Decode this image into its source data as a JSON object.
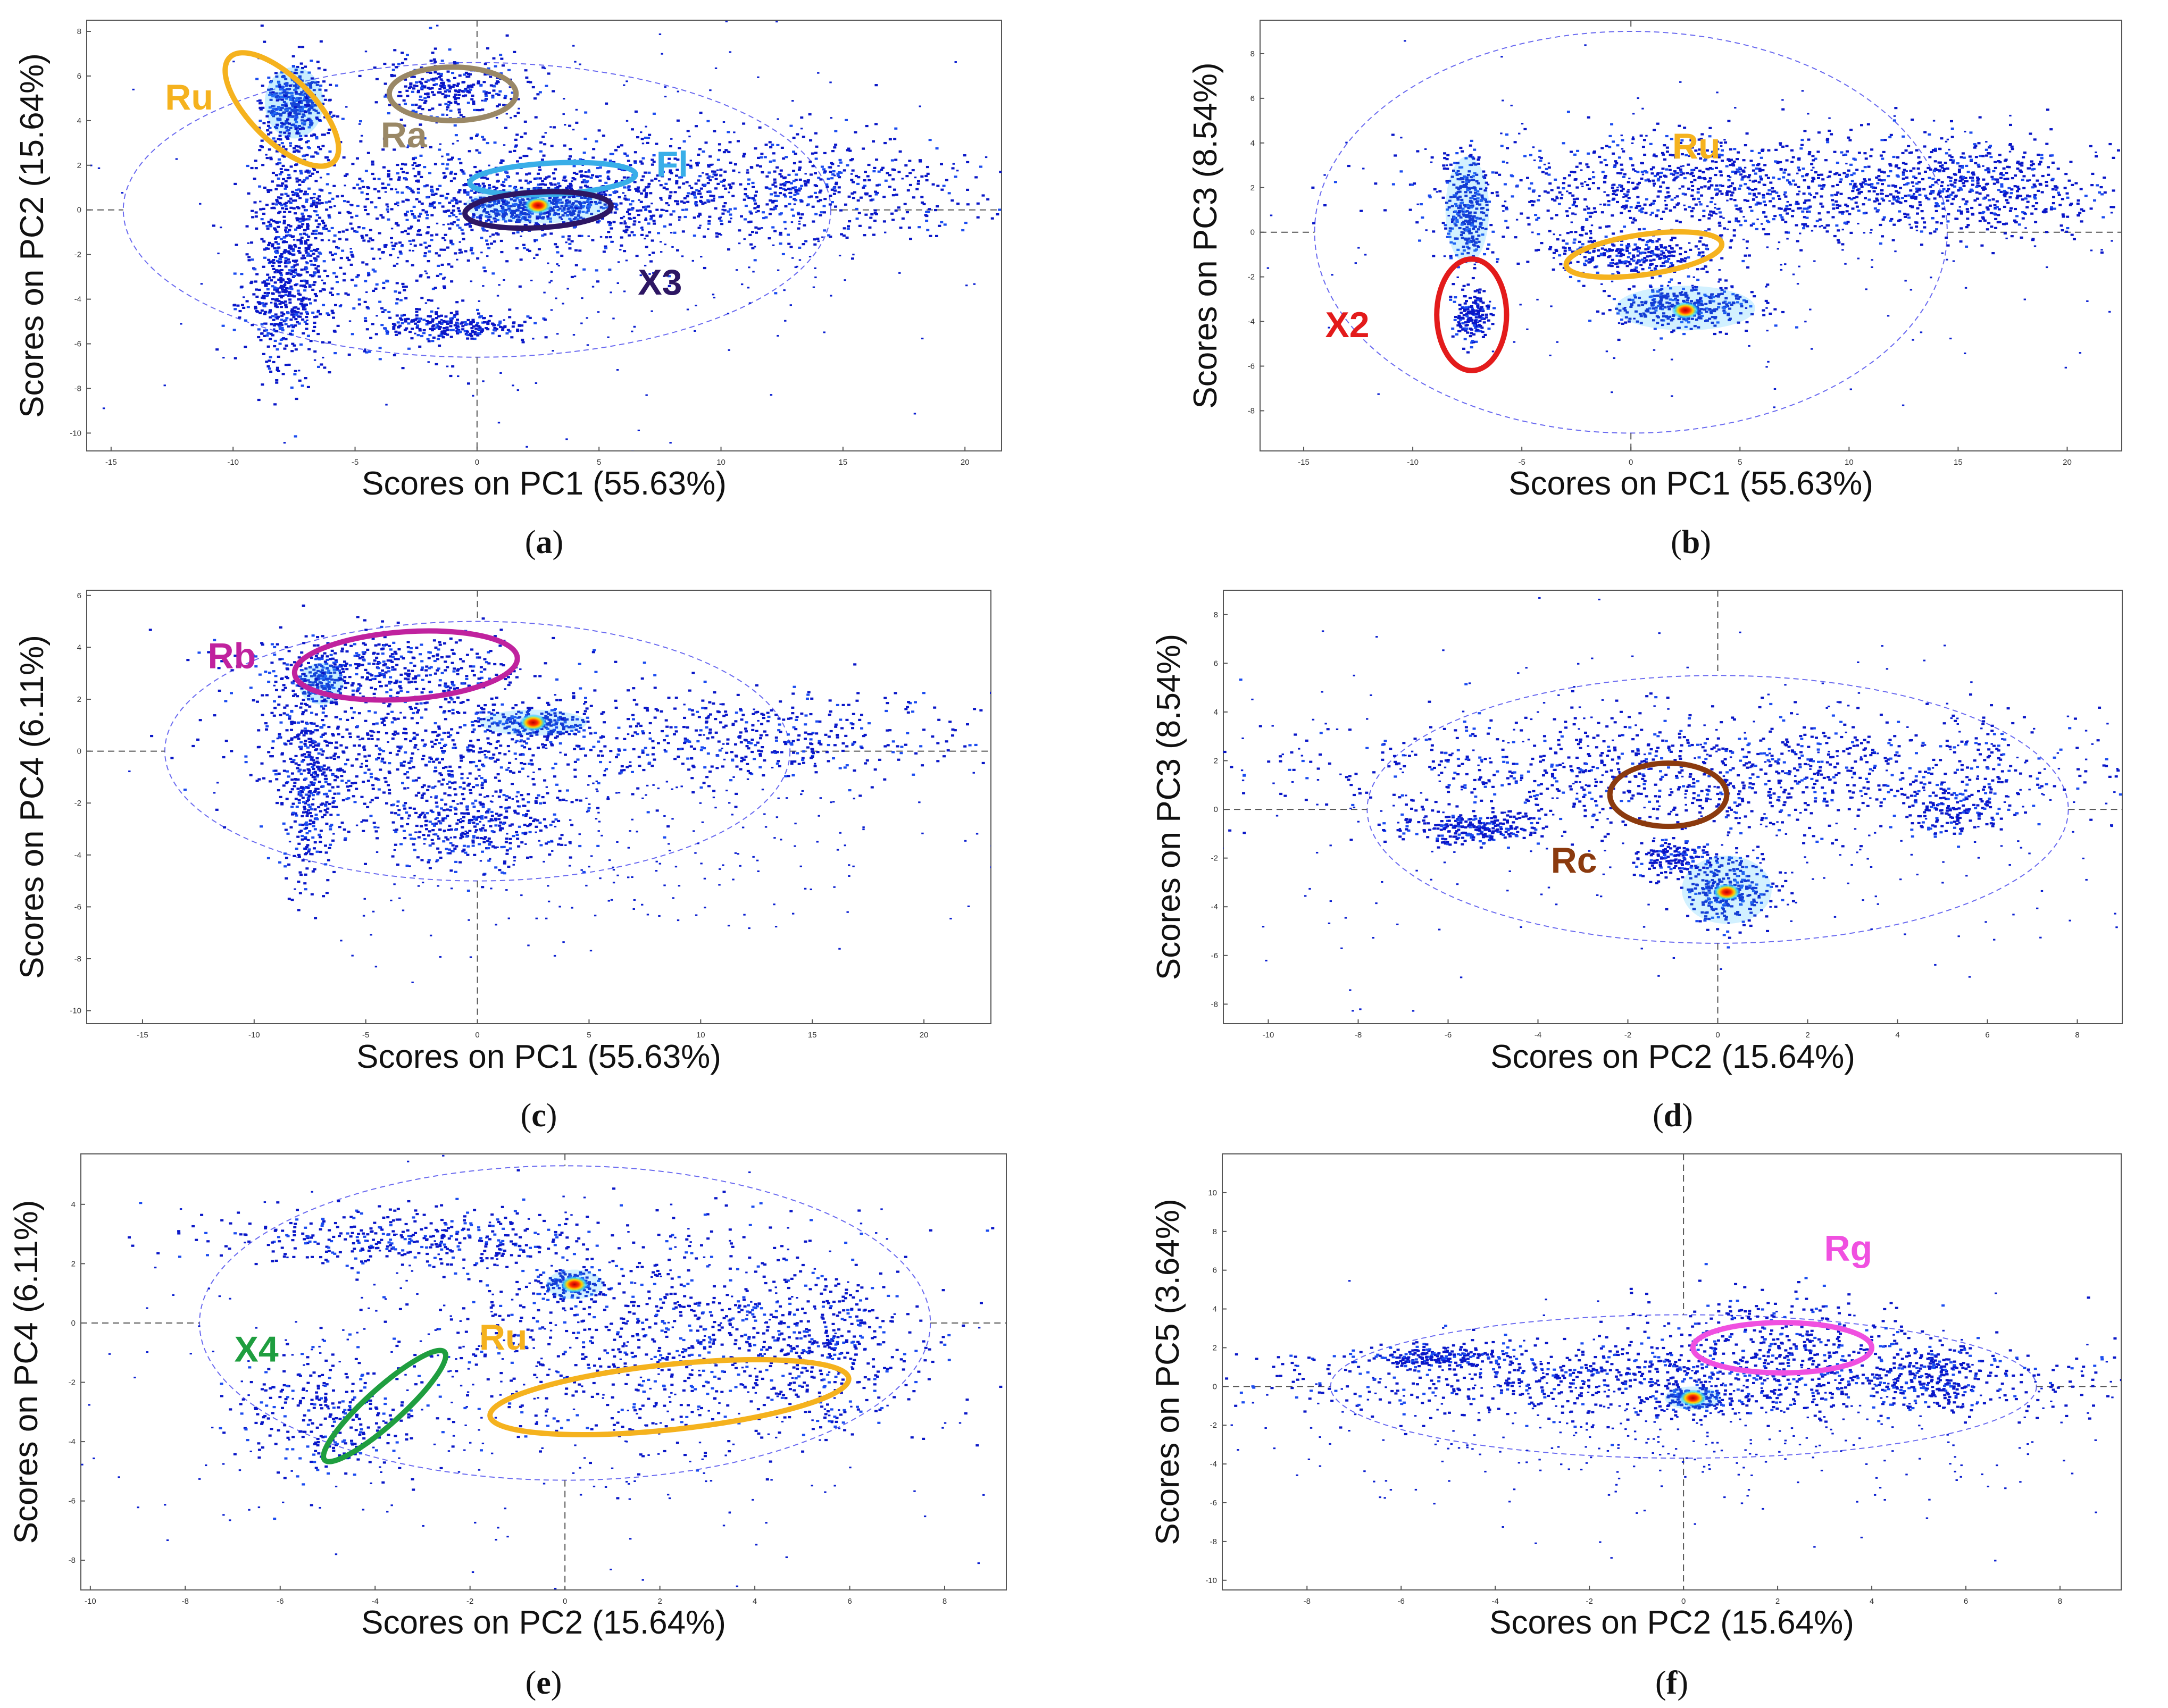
{
  "chart_data": [
    {
      "type": "scatter",
      "id": "a",
      "caption": "(a)",
      "xlabel": "Scores on PC1 (55.63%)",
      "ylabel": "Scores on PC2 (15.64%)",
      "xlim": [
        -16,
        21.5
      ],
      "ylim": [
        -10.8,
        8.5
      ],
      "xticks": [
        -15,
        -10,
        -5,
        0,
        5,
        10,
        15,
        20
      ],
      "yticks": [
        -10,
        -8,
        -6,
        -4,
        -2,
        0,
        2,
        4,
        6,
        8
      ],
      "confidence_ellipse": {
        "cx": 0,
        "cy": 0,
        "rx": 14.5,
        "ry": 6.6
      },
      "hotspot": {
        "x": 2.5,
        "y": 0.2
      },
      "density_clusters": [
        {
          "x": -7.5,
          "y": 4.8,
          "sx": 0.6,
          "sy": 0.8,
          "n": 350,
          "intensity": 0.6
        },
        {
          "x": -8,
          "y": -4,
          "sx": 0.8,
          "sy": 1.5,
          "n": 300
        },
        {
          "x": -7.5,
          "y": 0,
          "sx": 0.8,
          "sy": 3,
          "n": 500
        },
        {
          "x": -1,
          "y": 5.5,
          "sx": 1.6,
          "sy": 0.7,
          "n": 300
        },
        {
          "x": 2,
          "y": 0.5,
          "sx": 4,
          "sy": 1.4,
          "n": 700
        },
        {
          "x": 2.5,
          "y": 0.2,
          "sx": 1.5,
          "sy": 0.4,
          "n": 350,
          "intensity": 0.5
        },
        {
          "x": 12,
          "y": 1,
          "sx": 5,
          "sy": 1.2,
          "n": 700
        },
        {
          "x": -1,
          "y": -5.2,
          "sx": 1.6,
          "sy": 0.3,
          "n": 250
        },
        {
          "x": -4,
          "y": -2,
          "sx": 2.5,
          "sy": 2.5,
          "n": 350
        },
        {
          "x": 4,
          "y": -1,
          "sx": 8,
          "sy": 4,
          "n": 400,
          "sparse": true
        }
      ],
      "annotations": [
        {
          "label": "Ru",
          "color": "#f5b21e",
          "ex": -8,
          "ey": 4.5,
          "erx": 1.3,
          "ery": 3.3,
          "rot": -45,
          "tx": -11.8,
          "ty": 4.5
        },
        {
          "label": "Ra",
          "color": "#9a8866",
          "ex": -1,
          "ey": 5.2,
          "erx": 2.6,
          "ery": 1.2,
          "rot": 0,
          "tx": -3,
          "ty": 2.8
        },
        {
          "label": "Fl",
          "color": "#39aee8",
          "ex": 3.1,
          "ey": 1.4,
          "erx": 3.4,
          "ery": 0.7,
          "rot": -3,
          "tx": 8,
          "ty": 1.5
        },
        {
          "label": "X3",
          "color": "#2d1663",
          "ex": 2.5,
          "ey": 0,
          "erx": 3,
          "ery": 0.8,
          "rot": -3,
          "tx": 7.5,
          "ty": -3.8
        }
      ]
    },
    {
      "type": "scatter",
      "id": "b",
      "caption": "(b)",
      "xlabel": "Scores on PC1 (55.63%)",
      "ylabel": "Scores on PC3 (8.54%)",
      "xlim": [
        -17,
        22.5
      ],
      "ylim": [
        -9.8,
        9.5
      ],
      "xticks": [
        -15,
        -10,
        -5,
        0,
        5,
        10,
        15,
        20
      ],
      "yticks": [
        -8,
        -6,
        -4,
        -2,
        0,
        2,
        4,
        6,
        8
      ],
      "confidence_ellipse": {
        "cx": 0,
        "cy": 0,
        "rx": 14.5,
        "ry": 9
      },
      "hotspot": {
        "x": 2.5,
        "y": -3.5
      },
      "density_clusters": [
        {
          "x": 5,
          "y": 2,
          "sx": 7,
          "sy": 1.2,
          "n": 1100
        },
        {
          "x": -7.5,
          "y": 1,
          "sx": 0.5,
          "sy": 1.2,
          "n": 300,
          "intensity": 0.5
        },
        {
          "x": 0,
          "y": -1,
          "sx": 2,
          "sy": 0.5,
          "n": 300
        },
        {
          "x": 2.5,
          "y": -3.4,
          "sx": 1.6,
          "sy": 0.5,
          "n": 350,
          "intensity": 0.5
        },
        {
          "x": -7.3,
          "y": -3.7,
          "sx": 0.4,
          "sy": 0.6,
          "n": 180
        },
        {
          "x": 16,
          "y": 2,
          "sx": 3,
          "sy": 1,
          "n": 400
        },
        {
          "x": 3,
          "y": 0,
          "sx": 9,
          "sy": 3,
          "n": 300,
          "sparse": true
        }
      ],
      "annotations": [
        {
          "label": "Ru",
          "color": "#f5b21e",
          "ex": 0.6,
          "ey": -1,
          "erx": 3.6,
          "ery": 0.9,
          "rot": -8,
          "tx": 3,
          "ty": 3.3
        },
        {
          "label": "X2",
          "color": "#e31b1b",
          "ex": -7.3,
          "ey": -3.7,
          "erx": 1.6,
          "ery": 2.5,
          "rot": 0,
          "tx": -13,
          "ty": -4.7
        }
      ]
    },
    {
      "type": "scatter",
      "id": "c",
      "caption": "(c)",
      "xlabel": "Scores on PC1 (55.63%)",
      "ylabel": "Scores on PC4 (6.11%)",
      "xlim": [
        -17.5,
        23
      ],
      "ylim": [
        -10.5,
        6.2
      ],
      "xticks": [
        -15,
        -10,
        -5,
        0,
        5,
        10,
        15,
        20
      ],
      "yticks": [
        -10,
        -8,
        -6,
        -4,
        -2,
        0,
        2,
        4,
        6
      ],
      "confidence_ellipse": {
        "cx": 0,
        "cy": 0,
        "rx": 14,
        "ry": 5
      },
      "hotspot": {
        "x": 2.5,
        "y": 1.1
      },
      "density_clusters": [
        {
          "x": -4.5,
          "y": 3.2,
          "sx": 3,
          "sy": 0.7,
          "n": 400
        },
        {
          "x": -7,
          "y": 2.6,
          "sx": 0.5,
          "sy": 0.4,
          "n": 120,
          "intensity": 0.6
        },
        {
          "x": -7.5,
          "y": -1,
          "sx": 0.7,
          "sy": 2,
          "n": 400
        },
        {
          "x": -2.5,
          "y": 0,
          "sx": 4,
          "sy": 1.6,
          "n": 700
        },
        {
          "x": 2.5,
          "y": 1.1,
          "sx": 1.2,
          "sy": 0.25,
          "n": 200,
          "intensity": 0.5
        },
        {
          "x": 12,
          "y": 0.5,
          "sx": 5,
          "sy": 1,
          "n": 500
        },
        {
          "x": 0,
          "y": -3,
          "sx": 2,
          "sy": 0.8,
          "n": 300
        },
        {
          "x": 5,
          "y": -3,
          "sx": 7,
          "sy": 2.5,
          "n": 300,
          "sparse": true
        }
      ],
      "annotations": [
        {
          "label": "Rb",
          "color": "#c0229e",
          "ex": -3.2,
          "ey": 3.3,
          "erx": 5,
          "ery": 1.3,
          "rot": -4,
          "tx": -11,
          "ty": 3.2
        }
      ]
    },
    {
      "type": "scatter",
      "id": "d",
      "caption": "(d)",
      "xlabel": "Scores on PC2 (15.64%)",
      "ylabel": "Scores on PC3 (8.54%)",
      "xlim": [
        -11,
        9
      ],
      "ylim": [
        -8.8,
        9
      ],
      "xticks": [
        -10,
        -8,
        -6,
        -4,
        -2,
        0,
        2,
        4,
        6,
        8
      ],
      "yticks": [
        -8,
        -6,
        -4,
        -2,
        0,
        2,
        4,
        6,
        8
      ],
      "confidence_ellipse": {
        "cx": 0,
        "cy": 0,
        "rx": 7.8,
        "ry": 5.5
      },
      "hotspot": {
        "x": 0.2,
        "y": -3.4
      },
      "density_clusters": [
        {
          "x": 0,
          "y": 1.5,
          "sx": 4.5,
          "sy": 1.2,
          "n": 1100
        },
        {
          "x": -5.5,
          "y": -0.8,
          "sx": 0.8,
          "sy": 0.3,
          "n": 250
        },
        {
          "x": 0.2,
          "y": -3.3,
          "sx": 0.5,
          "sy": 0.7,
          "n": 300,
          "intensity": 0.5
        },
        {
          "x": -1,
          "y": -2,
          "sx": 0.4,
          "sy": 0.4,
          "n": 150
        },
        {
          "x": 5.3,
          "y": 0,
          "sx": 0.6,
          "sy": 0.5,
          "n": 150
        },
        {
          "x": 0,
          "y": 0,
          "sx": 6,
          "sy": 3.5,
          "n": 400,
          "sparse": true
        }
      ],
      "annotations": [
        {
          "label": "Rc",
          "color": "#8b3a0e",
          "ex": -1.1,
          "ey": 0.6,
          "erx": 1.3,
          "ery": 1.3,
          "rot": 0,
          "tx": -3.2,
          "ty": -2.6
        }
      ]
    },
    {
      "type": "scatter",
      "id": "e",
      "caption": "(e)",
      "xlabel": "Scores on PC2 (15.64%)",
      "ylabel": "Scores on PC4 (6.11%)",
      "xlim": [
        -10.2,
        9.3
      ],
      "ylim": [
        -9,
        5.7
      ],
      "xticks": [
        -10,
        -8,
        -6,
        -4,
        -2,
        0,
        2,
        4,
        6,
        8
      ],
      "yticks": [
        -8,
        -6,
        -4,
        -2,
        0,
        2,
        4
      ],
      "confidence_ellipse": {
        "cx": 0,
        "cy": 0,
        "rx": 7.7,
        "ry": 5.3
      },
      "hotspot": {
        "x": 0.2,
        "y": 1.3
      },
      "density_clusters": [
        {
          "x": -3.5,
          "y": 2.8,
          "sx": 2,
          "sy": 0.5,
          "n": 400
        },
        {
          "x": 2.5,
          "y": -0.5,
          "sx": 2.6,
          "sy": 1.8,
          "n": 900
        },
        {
          "x": 5.5,
          "y": -0.8,
          "sx": 0.8,
          "sy": 1.2,
          "n": 250
        },
        {
          "x": -5,
          "y": -3.2,
          "sx": 1,
          "sy": 1,
          "n": 300
        },
        {
          "x": 0.2,
          "y": 1.3,
          "sx": 0.3,
          "sy": 0.25,
          "n": 120,
          "intensity": 0.5
        },
        {
          "x": 0,
          "y": -2,
          "sx": 5,
          "sy": 3,
          "n": 400,
          "sparse": true
        }
      ],
      "annotations": [
        {
          "label": "Ru",
          "color": "#f5b21e",
          "ex": 2.2,
          "ey": -2.5,
          "erx": 3.8,
          "ery": 1.1,
          "rot": -6,
          "tx": -1.3,
          "ty": -0.9
        },
        {
          "label": "X4",
          "color": "#1f9e3f",
          "ex": -3.8,
          "ey": -2.8,
          "erx": 1.7,
          "ery": 0.6,
          "rot": -42,
          "tx": -6.5,
          "ty": -1.3
        }
      ]
    },
    {
      "type": "scatter",
      "id": "f",
      "caption": "(f)",
      "xlabel": "Scores on PC2 (15.64%)",
      "ylabel": "Scores on PC5 (3.64%)",
      "xlim": [
        -9.8,
        9.3
      ],
      "ylim": [
        -10.5,
        12
      ],
      "xticks": [
        -8,
        -6,
        -4,
        -2,
        0,
        2,
        4,
        6,
        8
      ],
      "yticks": [
        -10,
        -8,
        -6,
        -4,
        -2,
        0,
        2,
        4,
        6,
        8,
        10
      ],
      "confidence_ellipse": {
        "cx": 0,
        "cy": 0,
        "rx": 7.5,
        "ry": 3.7
      },
      "hotspot": {
        "x": 0.2,
        "y": -0.6
      },
      "density_clusters": [
        {
          "x": 0,
          "y": 0.3,
          "sx": 4.5,
          "sy": 1,
          "n": 1000
        },
        {
          "x": -5.3,
          "y": 1.5,
          "sx": 0.8,
          "sy": 0.3,
          "n": 200
        },
        {
          "x": 5.3,
          "y": 0.5,
          "sx": 0.6,
          "sy": 0.8,
          "n": 200
        },
        {
          "x": 2,
          "y": 2.5,
          "sx": 1.5,
          "sy": 1.2,
          "n": 300
        },
        {
          "x": 0.2,
          "y": -0.6,
          "sx": 0.3,
          "sy": 0.3,
          "n": 120,
          "intensity": 0.5
        },
        {
          "x": 0,
          "y": -2,
          "sx": 4.5,
          "sy": 2.5,
          "n": 400,
          "sparse": true
        }
      ],
      "annotations": [
        {
          "label": "Rg",
          "color": "#f050e0",
          "ex": 2.1,
          "ey": 2,
          "erx": 1.9,
          "ery": 1.3,
          "rot": 0,
          "tx": 3.5,
          "ty": 6.5
        }
      ]
    }
  ]
}
